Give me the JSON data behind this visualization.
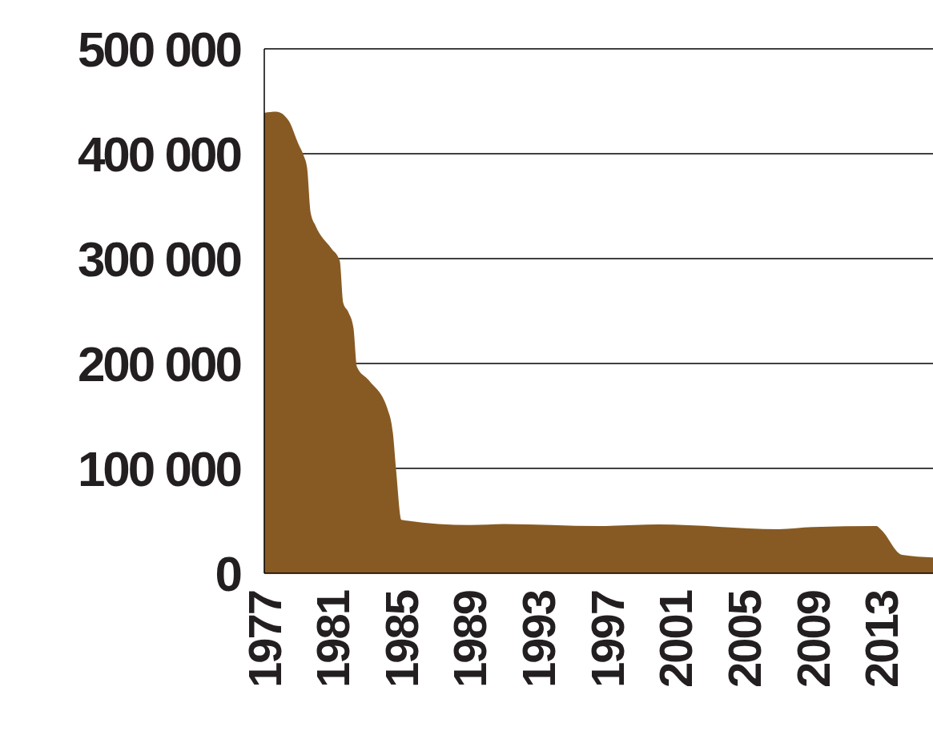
{
  "chart_data": {
    "type": "area",
    "x": [
      1977.0,
      1977.7,
      1978.4,
      1979.0,
      1979.3,
      1979.5,
      1979.7,
      1980.0,
      1980.9,
      1981.4,
      1981.6,
      1981.9,
      1982.2,
      1982.4,
      1983.1,
      1984.2,
      1984.5,
      1984.7,
      1985.0,
      1989.0,
      1991.0,
      1996.5,
      2000.0,
      2007.0,
      2009.0,
      2012.7,
      2013.0,
      2014.2,
      2016.0
    ],
    "series": [
      {
        "color": "#875a24",
        "values": [
          439000,
          440000,
          432000,
          409000,
          398000,
          386000,
          344000,
          331000,
          310000,
          298000,
          258000,
          249000,
          234000,
          197000,
          184000,
          156000,
          134000,
          96000,
          51000,
          46000,
          47000,
          45000,
          46500,
          42000,
          44000,
          45000,
          41000,
          17500,
          15000
        ]
      }
    ],
    "xlim": [
      1977,
      2016
    ],
    "xticks": [
      1977,
      1981,
      1985,
      1989,
      1993,
      1997,
      2001,
      2005,
      2009,
      2013
    ],
    "ylim": [
      0,
      500000
    ],
    "yticks": [
      {
        "value": 0,
        "label": "0"
      },
      {
        "value": 100000,
        "label": "100 000"
      },
      {
        "value": 200000,
        "label": "200 000"
      },
      {
        "value": 300000,
        "label": "300 000"
      },
      {
        "value": 400000,
        "label": "400 000"
      },
      {
        "value": 500000,
        "label": "500 000"
      }
    ],
    "grid": "y"
  }
}
